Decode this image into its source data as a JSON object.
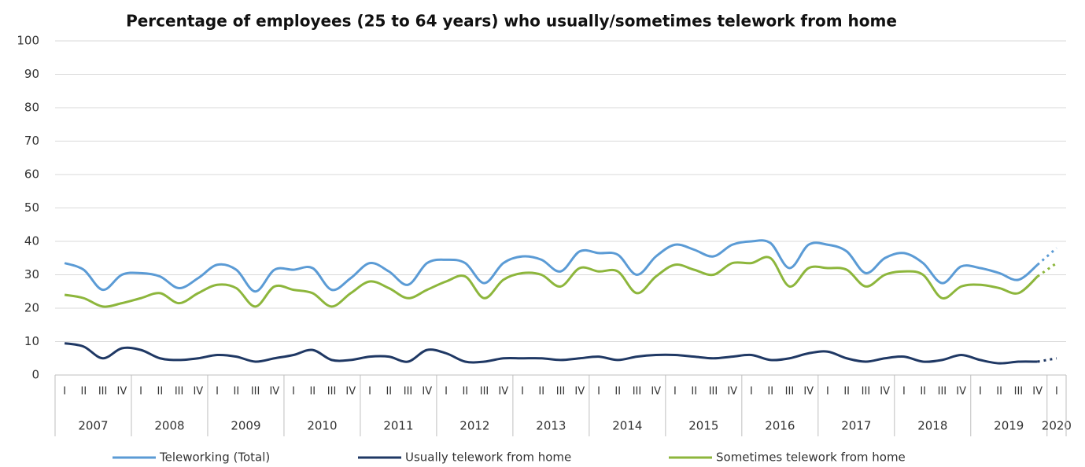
{
  "chart_data": {
    "type": "line",
    "title": "Percentage of employees (25 to 64 years) who usually/sometimes telework from home",
    "categories": [
      "I",
      "II",
      "III",
      "IV",
      "I",
      "II",
      "III",
      "IV",
      "I",
      "II",
      "III",
      "IV",
      "I",
      "II",
      "III",
      "IV",
      "I",
      "II",
      "III",
      "IV",
      "I",
      "II",
      "III",
      "IV",
      "I",
      "II",
      "III",
      "IV",
      "I",
      "II",
      "III",
      "IV",
      "I",
      "II",
      "III",
      "IV",
      "I",
      "II",
      "III",
      "IV",
      "I",
      "II",
      "III",
      "IV",
      "I",
      "II",
      "III",
      "IV",
      "I",
      "II",
      "III",
      "IV",
      "I"
    ],
    "groups": [
      {
        "label": "2007",
        "count": 4
      },
      {
        "label": "2008",
        "count": 4
      },
      {
        "label": "2009",
        "count": 4
      },
      {
        "label": "2010",
        "count": 4
      },
      {
        "label": "2011",
        "count": 4
      },
      {
        "label": "2012",
        "count": 4
      },
      {
        "label": "2013",
        "count": 4
      },
      {
        "label": "2014",
        "count": 4
      },
      {
        "label": "2015",
        "count": 4
      },
      {
        "label": "2016",
        "count": 4
      },
      {
        "label": "2017",
        "count": 4
      },
      {
        "label": "2018",
        "count": 4
      },
      {
        "label": "2019",
        "count": 4
      },
      {
        "label": "2020",
        "count": 1
      }
    ],
    "series": [
      {
        "name": "Teleworking (Total)",
        "color": "#5b9bd5",
        "values": [
          33.5,
          31.5,
          25.5,
          30,
          30.5,
          29.5,
          26,
          29,
          33,
          31.5,
          25,
          31.5,
          31.5,
          32,
          25.5,
          29,
          33.5,
          31,
          27,
          33.5,
          34.5,
          33.5,
          27.5,
          33.5,
          35.5,
          34.5,
          31,
          37,
          36.5,
          36,
          30,
          35.5,
          39,
          37.5,
          35.5,
          39,
          40,
          39.5,
          32,
          39,
          39,
          37,
          30.5,
          35,
          36.5,
          33.5,
          27.5,
          32.5,
          32,
          30.5,
          28.5,
          33,
          38
        ]
      },
      {
        "name": "Usually telework from home",
        "color": "#1f3864",
        "values": [
          9.5,
          8.5,
          5,
          8,
          7.5,
          5,
          4.5,
          5,
          6,
          5.5,
          4,
          5,
          6,
          7.5,
          4.5,
          4.5,
          5.5,
          5.5,
          4,
          7.5,
          6.5,
          4,
          4,
          5,
          5,
          5,
          4.5,
          5,
          5.5,
          4.5,
          5.5,
          6,
          6,
          5.5,
          5,
          5.5,
          6,
          4.5,
          5,
          6.5,
          7,
          5,
          4,
          5,
          5.5,
          4,
          4.5,
          6,
          4.5,
          3.5,
          4,
          4,
          5
        ]
      },
      {
        "name": "Sometimes telework from home",
        "color": "#8db63c",
        "values": [
          24,
          23,
          20.5,
          21.5,
          23,
          24.5,
          21.5,
          24.5,
          27,
          26,
          20.5,
          26.5,
          25.5,
          24.5,
          20.5,
          24.5,
          28,
          26,
          23,
          25.5,
          28,
          29.5,
          23,
          28.5,
          30.5,
          30,
          26.5,
          32,
          31,
          31,
          24.5,
          29.5,
          33,
          31.5,
          30,
          33.5,
          33.5,
          35,
          26.5,
          32,
          32,
          31.5,
          26.5,
          30,
          31,
          30,
          23,
          26.5,
          27,
          26,
          24.5,
          29.5,
          33.5
        ]
      }
    ],
    "dotted_last_segment": true,
    "ylim": [
      0,
      100
    ],
    "yticks": [
      0,
      10,
      20,
      30,
      40,
      50,
      60,
      70,
      80,
      90,
      100
    ],
    "grid": true,
    "legend": "bottom"
  }
}
